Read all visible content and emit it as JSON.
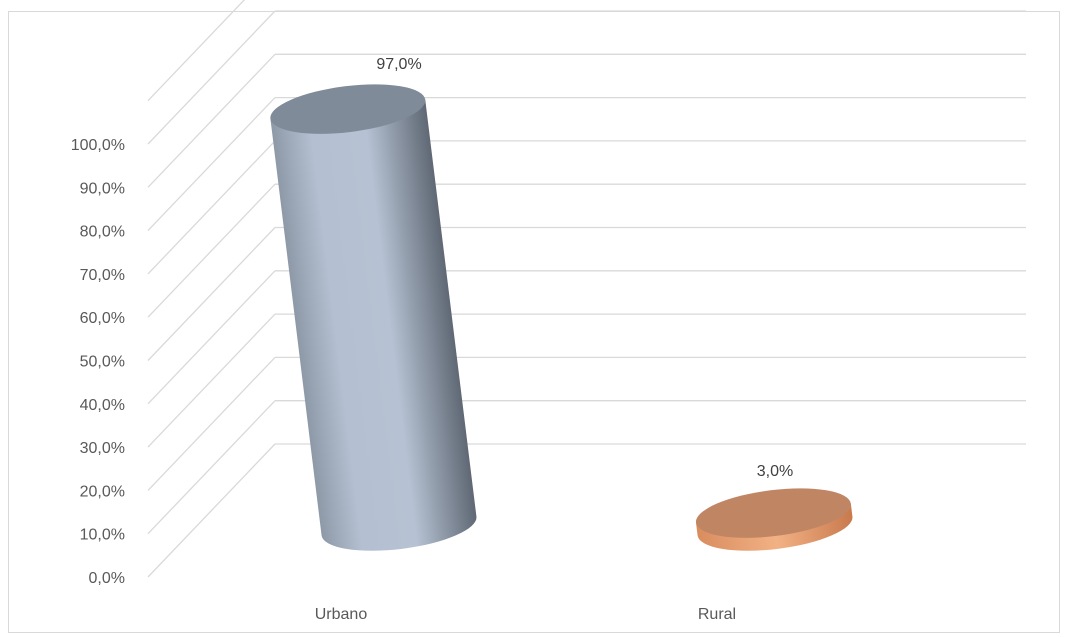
{
  "chart_data": {
    "type": "bar",
    "style": "3d-cylinder",
    "categories": [
      "Urbano",
      "Rural"
    ],
    "series": [
      {
        "values": [
          97.0,
          3.0
        ],
        "colors": [
          "#a9b6c9",
          "#e39a6d"
        ]
      }
    ],
    "data_labels": [
      "97,0%",
      "3,0%"
    ],
    "y_ticks": [
      0,
      10,
      20,
      30,
      40,
      50,
      60,
      70,
      80,
      90,
      100
    ],
    "y_tick_labels": [
      "0,0%",
      "10,0%",
      "20,0%",
      "30,0%",
      "40,0%",
      "50,0%",
      "60,0%",
      "70,0%",
      "80,0%",
      "90,0%",
      "100,0%"
    ],
    "ylim": [
      0,
      100
    ],
    "gridlines": true,
    "legend": "none",
    "colors": {
      "gridline": "#d9d9d9",
      "label": "#595959",
      "urbano_body": "#a9b6c9",
      "urbano_top": "#7f8b99",
      "rural_body": "#e39a6d",
      "rural_top": "#c08664"
    }
  }
}
